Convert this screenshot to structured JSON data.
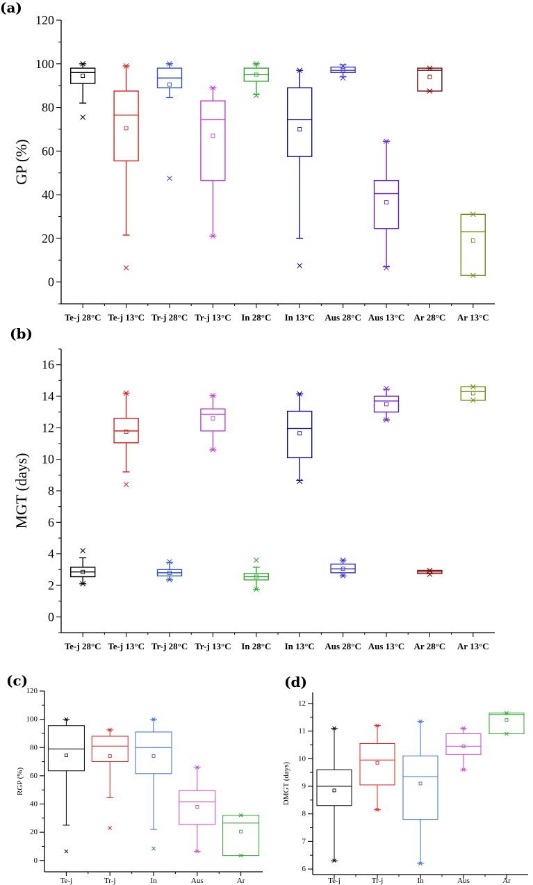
{
  "chart_data": [
    {
      "panel": "(a)",
      "type": "box",
      "ylabel": "GP (%)",
      "ylim": [
        -10,
        120
      ],
      "yticks": [
        0,
        20,
        40,
        60,
        80,
        100,
        120
      ],
      "categories": [
        "Te-j 28°C",
        "Te-j 13°C",
        "Tr-j 28°C",
        "Tr-j 13°C",
        "In 28°C",
        "In 13°C",
        "Aus 28°C",
        "Aus 13°C",
        "Ar 28°C",
        "Ar 13°C"
      ],
      "colors": [
        "#000000",
        "#e0201b",
        "#2b4fd6",
        "#c23fd8",
        "#2ea82e",
        "#0a0a9c",
        "#3a2fd6",
        "#6a1ed0",
        "#7a0a0a",
        "#6b8a12"
      ],
      "boxes": [
        {
          "q1": 91,
          "median": 96,
          "q3": 98,
          "wlo": 82,
          "whi": 100,
          "mean": 94.5,
          "min": 75.5,
          "max": 100
        },
        {
          "q1": 55.5,
          "median": 76.5,
          "q3": 87.5,
          "wlo": 21.5,
          "whi": 99,
          "mean": 70.5,
          "min": 6.5,
          "max": 99
        },
        {
          "q1": 89,
          "median": 93.5,
          "q3": 98,
          "wlo": 84.5,
          "whi": 100,
          "mean": 90.5,
          "min": 47.5,
          "max": 100
        },
        {
          "q1": 46.5,
          "median": 74.5,
          "q3": 83,
          "wlo": 21,
          "whi": 89,
          "mean": 67,
          "min": 21,
          "max": 89
        },
        {
          "q1": 92,
          "median": 95,
          "q3": 98,
          "wlo": 86,
          "whi": 100,
          "mean": 95,
          "min": 85.5,
          "max": 100
        },
        {
          "q1": 57.5,
          "median": 74.5,
          "q3": 89,
          "wlo": 20,
          "whi": 97,
          "mean": 70,
          "min": 7.5,
          "max": 97
        },
        {
          "q1": 96,
          "median": 97,
          "q3": 98.5,
          "wlo": 94,
          "whi": 99.5,
          "mean": 97,
          "min": 93.5,
          "max": 99
        },
        {
          "q1": 24.5,
          "median": 40.5,
          "q3": 46.5,
          "wlo": 7,
          "whi": 64.5,
          "mean": 36.5,
          "min": 6.5,
          "max": 64.5
        },
        {
          "q1": 87.5,
          "median": 97,
          "q3": 98,
          "wlo": 87.5,
          "whi": 98,
          "mean": 94,
          "min": 87.5,
          "max": 98
        },
        {
          "q1": 3,
          "median": 23,
          "q3": 31,
          "wlo": 3,
          "whi": 31,
          "mean": 19,
          "min": 3,
          "max": 31
        }
      ]
    },
    {
      "panel": "(b)",
      "type": "box",
      "ylabel": "MGT (days)",
      "ylim": [
        -1,
        17
      ],
      "yticks": [
        0,
        2,
        4,
        6,
        8,
        10,
        12,
        14,
        16
      ],
      "categories": [
        "Te-j 28°C",
        "Te-j 13°C",
        "Tr-j 28°C",
        "Tr-j 13°C",
        "In 28°C",
        "In 13°C",
        "Aus 28°C",
        "Aus 13°C",
        "Ar 28°C",
        "Ar 13°C"
      ],
      "colors": [
        "#000000",
        "#e0201b",
        "#2b4fd6",
        "#c23fd8",
        "#2ea82e",
        "#0a0a9c",
        "#3a2fd6",
        "#6a1ed0",
        "#7a0a0a",
        "#6b8a12"
      ],
      "boxes": [
        {
          "q1": 2.55,
          "median": 2.85,
          "q3": 3.15,
          "wlo": 2.1,
          "whi": 3.75,
          "mean": 2.85,
          "min": 2.1,
          "max": 4.2
        },
        {
          "q1": 11.05,
          "median": 11.8,
          "q3": 12.6,
          "wlo": 9.2,
          "whi": 14.2,
          "mean": 11.75,
          "min": 8.4,
          "max": 14.2
        },
        {
          "q1": 2.6,
          "median": 2.8,
          "q3": 3.0,
          "wlo": 2.35,
          "whi": 3.45,
          "mean": 2.8,
          "min": 2.35,
          "max": 3.5
        },
        {
          "q1": 11.8,
          "median": 12.85,
          "q3": 13.2,
          "wlo": 10.6,
          "whi": 14.05,
          "mean": 12.6,
          "min": 10.6,
          "max": 14.05
        },
        {
          "q1": 2.35,
          "median": 2.55,
          "q3": 2.75,
          "wlo": 1.75,
          "whi": 3.15,
          "mean": 2.55,
          "min": 1.75,
          "max": 3.6
        },
        {
          "q1": 10.1,
          "median": 11.95,
          "q3": 13.05,
          "wlo": 8.65,
          "whi": 14.15,
          "mean": 11.65,
          "min": 8.6,
          "max": 14.15
        },
        {
          "q1": 2.8,
          "median": 3.05,
          "q3": 3.35,
          "wlo": 2.6,
          "whi": 3.6,
          "mean": 3.05,
          "min": 2.6,
          "max": 3.6
        },
        {
          "q1": 13.0,
          "median": 13.7,
          "q3": 14.0,
          "wlo": 12.5,
          "whi": 14.45,
          "mean": 13.5,
          "min": 12.5,
          "max": 14.5
        },
        {
          "q1": 2.75,
          "median": 2.85,
          "q3": 2.95,
          "wlo": 2.75,
          "whi": 2.95,
          "mean": 2.85,
          "min": 2.7,
          "max": 2.95
        },
        {
          "q1": 13.75,
          "median": 14.3,
          "q3": 14.6,
          "wlo": 13.75,
          "whi": 14.6,
          "mean": 14.2,
          "min": 13.75,
          "max": 14.6
        }
      ]
    },
    {
      "panel": "(c)",
      "type": "box",
      "ylabel": "RGP (%)",
      "ylim": [
        -8,
        120
      ],
      "yticks": [
        0,
        20,
        40,
        60,
        80,
        100,
        120
      ],
      "categories": [
        "Te-j",
        "Tr-j",
        "In",
        "Aus",
        "Ar"
      ],
      "colors": [
        "#000000",
        "#e0201b",
        "#3a6ae0",
        "#d23fd0",
        "#2ea82e"
      ],
      "boxes": [
        {
          "q1": 63.5,
          "median": 79,
          "q3": 95.5,
          "wlo": 25,
          "whi": 100,
          "mean": 74.5,
          "min": 6.5,
          "max": 100
        },
        {
          "q1": 70,
          "median": 81,
          "q3": 88,
          "wlo": 44.5,
          "whi": 92.5,
          "mean": 74,
          "min": 23,
          "max": 92.5
        },
        {
          "q1": 61.5,
          "median": 80,
          "q3": 91,
          "wlo": 22,
          "whi": 100,
          "mean": 74,
          "min": 8.5,
          "max": 100
        },
        {
          "q1": 25.5,
          "median": 41.5,
          "q3": 49.5,
          "wlo": 6.5,
          "whi": 66,
          "mean": 38,
          "min": 6.5,
          "max": 66
        },
        {
          "q1": 3.5,
          "median": 26.5,
          "q3": 32,
          "wlo": 3.5,
          "whi": 32,
          "mean": 20.5,
          "min": 3.5,
          "max": 32
        }
      ]
    },
    {
      "panel": "(d)",
      "type": "box",
      "ylabel": "DMGT (days)",
      "ylim": [
        5.8,
        12.4
      ],
      "yticks": [
        6,
        7,
        8,
        9,
        10,
        11,
        12
      ],
      "categories": [
        "Te-j",
        "Tr-j",
        "In",
        "Aus",
        "Ar"
      ],
      "colors": [
        "#000000",
        "#e0201b",
        "#3a6ae0",
        "#d23fd0",
        "#2ea82e"
      ],
      "boxes": [
        {
          "q1": 8.3,
          "median": 9.0,
          "q3": 9.6,
          "wlo": 6.3,
          "whi": 11.1,
          "mean": 8.85,
          "min": 6.3,
          "max": 11.1
        },
        {
          "q1": 9.05,
          "median": 9.95,
          "q3": 10.55,
          "wlo": 8.15,
          "whi": 11.2,
          "mean": 9.85,
          "min": 8.15,
          "max": 11.2
        },
        {
          "q1": 7.8,
          "median": 9.35,
          "q3": 10.1,
          "wlo": 6.2,
          "whi": 11.35,
          "mean": 9.1,
          "min": 6.2,
          "max": 11.35
        },
        {
          "q1": 10.15,
          "median": 10.45,
          "q3": 10.9,
          "wlo": 9.6,
          "whi": 11.1,
          "mean": 10.45,
          "min": 9.6,
          "max": 11.1
        },
        {
          "q1": 10.9,
          "median": 11.6,
          "q3": 11.65,
          "wlo": 10.9,
          "whi": 11.65,
          "mean": 11.4,
          "min": 10.9,
          "max": 11.65
        }
      ]
    }
  ]
}
